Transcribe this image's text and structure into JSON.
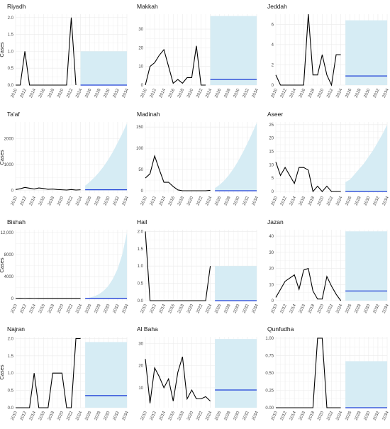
{
  "colors": {
    "observed_line": "#000000",
    "forecast_line": "#1f3fd6",
    "forecast_band": "#d6ecf4",
    "grid": "#ebebeb"
  },
  "chart_data": [
    {
      "type": "line",
      "title": "Riyadh",
      "ylabel": "Cases",
      "ylim": [
        0,
        2.1
      ],
      "yticks": [
        0,
        0.5,
        1.0,
        1.5,
        2.0
      ],
      "ytick_labels": [
        "0.0",
        "0.5",
        "1.0",
        "1.5",
        "2.0"
      ],
      "x": [
        2010,
        2011,
        2012,
        2013,
        2014,
        2015,
        2016,
        2017,
        2018,
        2019,
        2020,
        2021,
        2022,
        2023
      ],
      "observed": [
        0,
        0,
        1,
        0,
        0,
        0,
        0,
        0,
        0,
        0,
        0,
        0,
        2,
        0
      ],
      "forecast_x": [
        2024,
        2034
      ],
      "forecast": [
        0,
        0
      ],
      "band_upper": [
        1.0,
        1.0
      ]
    },
    {
      "type": "line",
      "title": "Makkah",
      "ylabel": "",
      "ylim": [
        0,
        38
      ],
      "yticks": [
        0,
        10,
        20,
        30
      ],
      "ytick_labels": [
        "0",
        "10",
        "20",
        "30"
      ],
      "x": [
        2010,
        2011,
        2012,
        2013,
        2014,
        2015,
        2016,
        2017,
        2018,
        2019,
        2020,
        2021,
        2022,
        2023
      ],
      "observed": [
        0,
        10,
        12,
        16,
        19,
        10,
        1,
        3,
        1,
        4,
        4,
        21,
        0,
        0
      ],
      "forecast_x": [
        2024,
        2034
      ],
      "forecast": [
        3,
        3
      ],
      "band_upper": [
        37,
        37
      ]
    },
    {
      "type": "line",
      "title": "Jeddah",
      "ylabel": "",
      "ylim": [
        0,
        7
      ],
      "yticks": [
        0,
        2,
        4,
        6
      ],
      "ytick_labels": [
        "0",
        "2",
        "4",
        "6"
      ],
      "x": [
        2010,
        2011,
        2012,
        2013,
        2014,
        2015,
        2016,
        2017,
        2018,
        2019,
        2020,
        2021,
        2022,
        2023,
        2024
      ],
      "observed": [
        1,
        0,
        0,
        0,
        0,
        0,
        0,
        7,
        1,
        1,
        3,
        1,
        0,
        3,
        3
      ],
      "forecast_x": [
        2025,
        2034
      ],
      "forecast": [
        0.9,
        0.9
      ],
      "band_upper": [
        6.4,
        6.4
      ]
    },
    {
      "type": "line",
      "title": "Ta'af",
      "ylabel": "Cases",
      "ylim": [
        -100,
        2650
      ],
      "yticks": [
        0,
        1000,
        2000
      ],
      "ytick_labels": [
        "0",
        "1000",
        "2000"
      ],
      "x": [
        2010,
        2011,
        2012,
        2013,
        2014,
        2015,
        2016,
        2017,
        2018,
        2019,
        2020,
        2021,
        2022,
        2023,
        2024
      ],
      "observed": [
        30,
        60,
        110,
        80,
        50,
        90,
        70,
        40,
        50,
        30,
        20,
        10,
        30,
        10,
        20
      ],
      "forecast_x": [
        2025,
        2026,
        2027,
        2028,
        2029,
        2030,
        2031,
        2032,
        2033,
        2034
      ],
      "forecast": [
        20,
        20,
        20,
        20,
        20,
        20,
        20,
        20,
        20,
        20
      ],
      "band_upper": [
        180,
        330,
        500,
        700,
        930,
        1200,
        1500,
        1850,
        2200,
        2600
      ]
    },
    {
      "type": "line",
      "title": "Madinah",
      "ylabel": "",
      "ylim": [
        -5,
        162
      ],
      "yticks": [
        0,
        50,
        100,
        150
      ],
      "ytick_labels": [
        "0",
        "50",
        "100",
        "150"
      ],
      "x": [
        2010,
        2011,
        2012,
        2013,
        2014,
        2015,
        2016,
        2017,
        2018,
        2019,
        2020,
        2021,
        2022,
        2023,
        2024
      ],
      "observed": [
        30,
        40,
        82,
        50,
        20,
        20,
        10,
        2,
        0,
        0,
        0,
        0,
        0,
        0,
        1
      ],
      "forecast_x": [
        2025,
        2026,
        2027,
        2028,
        2029,
        2030,
        2031,
        2032,
        2033,
        2034
      ],
      "forecast": [
        0,
        0,
        0,
        0,
        0,
        0,
        0,
        0,
        0,
        0
      ],
      "band_upper": [
        6,
        14,
        24,
        37,
        52,
        70,
        90,
        112,
        135,
        160
      ]
    },
    {
      "type": "line",
      "title": "Aseer",
      "ylabel": "",
      "ylim": [
        -0.5,
        26
      ],
      "yticks": [
        0,
        5,
        10,
        15,
        20,
        25
      ],
      "ytick_labels": [
        "0",
        "5",
        "10",
        "15",
        "20",
        "25"
      ],
      "x": [
        2010,
        2011,
        2012,
        2013,
        2014,
        2015,
        2016,
        2017,
        2018,
        2019,
        2020,
        2021,
        2022,
        2023,
        2024
      ],
      "observed": [
        11,
        6,
        9,
        6,
        3,
        9,
        9,
        8,
        0,
        2,
        0,
        2,
        0,
        0,
        0
      ],
      "forecast_x": [
        2025,
        2026,
        2027,
        2028,
        2029,
        2030,
        2031,
        2032,
        2033,
        2034
      ],
      "forecast": [
        0,
        0,
        0,
        0,
        0,
        0,
        0,
        0,
        0,
        0
      ],
      "band_upper": [
        3.5,
        4.5,
        6.5,
        8.5,
        10.5,
        13,
        15.5,
        18.5,
        21.5,
        25
      ]
    },
    {
      "type": "line",
      "title": "Bishah",
      "ylabel": "Cases",
      "ylim": [
        -400,
        12500
      ],
      "yticks": [
        0,
        4000,
        8000,
        12000
      ],
      "ytick_labels": [
        "0",
        "4000",
        "8000",
        "12,000"
      ],
      "x": [
        2010,
        2011,
        2012,
        2013,
        2014,
        2015,
        2016,
        2017,
        2018,
        2019,
        2020,
        2021,
        2022,
        2023,
        2024
      ],
      "observed": [
        20,
        30,
        20,
        30,
        20,
        10,
        20,
        10,
        20,
        10,
        10,
        10,
        10,
        10,
        10
      ],
      "forecast_x": [
        2025,
        2026,
        2027,
        2028,
        2029,
        2030,
        2031,
        2032,
        2033,
        2034
      ],
      "forecast": [
        10,
        10,
        10,
        10,
        10,
        10,
        10,
        10,
        10,
        10
      ],
      "band_upper": [
        40,
        150,
        400,
        800,
        1400,
        2300,
        3600,
        5400,
        8000,
        12000
      ]
    },
    {
      "type": "line",
      "title": "Hail",
      "ylabel": "",
      "ylim": [
        0,
        2.05
      ],
      "yticks": [
        0,
        0.5,
        1.0,
        1.5,
        2.0
      ],
      "ytick_labels": [
        "0.0",
        "0.5",
        "1.0",
        "1.5",
        "2.0"
      ],
      "x": [
        2010,
        2011,
        2012,
        2013,
        2014,
        2015,
        2016,
        2017,
        2018,
        2019,
        2020,
        2021,
        2022,
        2023,
        2024
      ],
      "observed": [
        2,
        0,
        0,
        0,
        0,
        0,
        0,
        0,
        0,
        0,
        0,
        0,
        0,
        0,
        1
      ],
      "forecast_x": [
        2025,
        2034
      ],
      "forecast": [
        0,
        0
      ],
      "band_upper": [
        1.0,
        1.0
      ]
    },
    {
      "type": "line",
      "title": "Jazan",
      "ylabel": "",
      "ylim": [
        0,
        44
      ],
      "yticks": [
        0,
        10,
        20,
        30,
        40
      ],
      "ytick_labels": [
        "0",
        "10",
        "20",
        "30",
        "40"
      ],
      "x": [
        2010,
        2011,
        2012,
        2013,
        2014,
        2015,
        2016,
        2017,
        2018,
        2019,
        2020,
        2021,
        2022,
        2023,
        2024
      ],
      "observed": [
        2,
        7,
        12,
        14,
        16,
        7,
        19,
        20,
        6,
        1,
        1,
        15,
        9,
        4,
        0
      ],
      "forecast_x": [
        2025,
        2034
      ],
      "forecast": [
        6,
        6
      ],
      "band_upper": [
        43,
        43
      ]
    },
    {
      "type": "line",
      "title": "Najran",
      "ylabel": "Cases",
      "ylim": [
        0,
        2.05
      ],
      "yticks": [
        0,
        0.5,
        1.0,
        1.5,
        2.0
      ],
      "ytick_labels": [
        "0.0",
        "0.5",
        "1.0",
        "1.5",
        "2.0"
      ],
      "x": [
        2010,
        2011,
        2012,
        2013,
        2014,
        2015,
        2016,
        2017,
        2018,
        2019,
        2020,
        2021,
        2022,
        2023,
        2024
      ],
      "observed": [
        0,
        0,
        0,
        0,
        1,
        0,
        0,
        0,
        1,
        1,
        1,
        0,
        0,
        2,
        2
      ],
      "forecast_x": [
        2025,
        2034
      ],
      "forecast": [
        0.35,
        0.35
      ],
      "band_upper": [
        1.9,
        1.9
      ]
    },
    {
      "type": "line",
      "title": "Al Baha",
      "ylabel": "",
      "ylim": [
        1,
        33
      ],
      "yticks": [
        10,
        20,
        30
      ],
      "ytick_labels": [
        "10",
        "20",
        "30"
      ],
      "x": [
        2010,
        2011,
        2012,
        2013,
        2014,
        2015,
        2016,
        2017,
        2018,
        2019,
        2020,
        2021,
        2022,
        2023,
        2024
      ],
      "observed": [
        23,
        3,
        19,
        15,
        10,
        14,
        4,
        17,
        24,
        5,
        9,
        5,
        5,
        6,
        4
      ],
      "forecast_x": [
        2025,
        2034
      ],
      "forecast": [
        9,
        9
      ],
      "band_upper": [
        32,
        32
      ]
    },
    {
      "type": "line",
      "title": "Qunfudha",
      "ylabel": "",
      "ylim": [
        0,
        1.02
      ],
      "yticks": [
        0,
        0.25,
        0.5,
        0.75,
        1.0
      ],
      "ytick_labels": [
        "0.00",
        "0.25",
        "0.50",
        "0.75",
        "1.00"
      ],
      "x": [
        2010,
        2011,
        2012,
        2013,
        2014,
        2015,
        2016,
        2017,
        2018,
        2019,
        2020,
        2021,
        2022,
        2023,
        2024
      ],
      "observed": [
        0,
        0,
        0,
        0,
        0,
        0,
        0,
        0,
        0,
        1,
        1,
        0,
        0,
        0,
        0
      ],
      "forecast_x": [
        2025,
        2034
      ],
      "forecast": [
        0,
        0
      ],
      "band_upper": [
        0.67,
        0.67
      ]
    }
  ],
  "xtick_labels": [
    "2010",
    "2012",
    "2014",
    "2016",
    "2018",
    "2020",
    "2022",
    "2024",
    "2026",
    "2028",
    "2030",
    "2032",
    "2034"
  ]
}
